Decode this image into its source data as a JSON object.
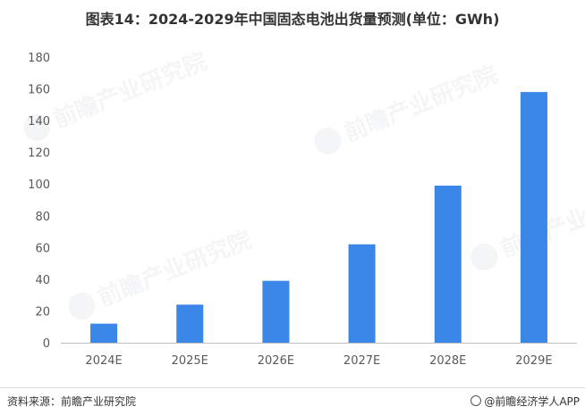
{
  "title": "图表14：2024-2029年中国固态电池出货量预测(单位：GWh)",
  "footer": {
    "source": "资料来源：前瞻产业研究院",
    "brand": "@前瞻经济学人APP"
  },
  "watermark": {
    "text": "前瞻产业研究院"
  },
  "colors": {
    "bar": "#3a87e8",
    "axis": "#bfbfbf",
    "tick_text": "#595959"
  },
  "chart_data": {
    "type": "bar",
    "categories": [
      "2024E",
      "2025E",
      "2026E",
      "2027E",
      "2028E",
      "2029E"
    ],
    "values": [
      12,
      24,
      39,
      62,
      99,
      158
    ],
    "title": "图表14：2024-2029年中国固态电池出货量预测(单位：GWh)",
    "xlabel": "",
    "ylabel": "",
    "ylim": [
      0,
      180
    ],
    "yticks": [
      0,
      20,
      40,
      60,
      80,
      100,
      120,
      140,
      160,
      180
    ],
    "grid": false,
    "legend": "none"
  }
}
